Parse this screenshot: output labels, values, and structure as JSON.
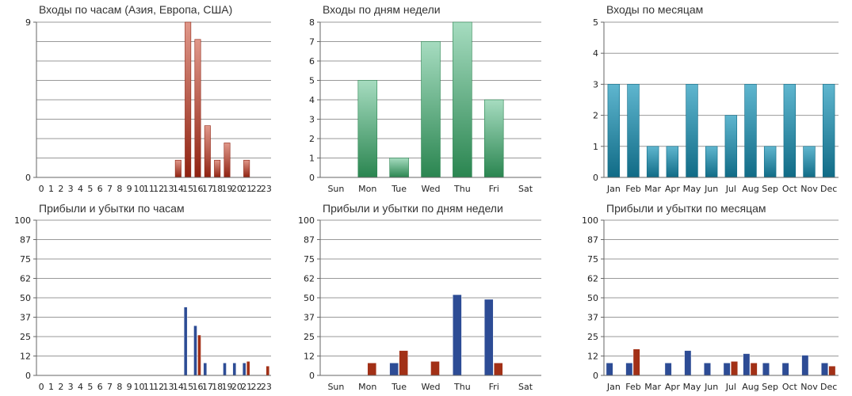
{
  "colors": {
    "hours_entries_top": "#e0988a",
    "hours_entries_bottom": "#8f2211",
    "weekday_entries_top": "#a6dcc0",
    "weekday_entries_bottom": "#2a8550",
    "month_entries_top": "#5fb6cf",
    "month_entries_bottom": "#106b86",
    "profit_blue": "#2d4c95",
    "loss_red": "#a23016",
    "grid": "#999999",
    "axis": "#666666"
  },
  "charts": {
    "hours_entries": {
      "title": "Входы по часам (Азия, Европа, США)",
      "chart_data": {
        "type": "bar",
        "title": "Входы по часам (Азия, Европа, США)",
        "categories": [
          "0",
          "1",
          "2",
          "3",
          "4",
          "5",
          "6",
          "7",
          "8",
          "9",
          "10",
          "11",
          "12",
          "13",
          "14",
          "15",
          "16",
          "17",
          "18",
          "19",
          "20",
          "21",
          "22",
          "23"
        ],
        "tick_labels": [
          "0",
          "1",
          "2",
          "3",
          "4",
          "5",
          "6",
          "7",
          "8",
          "9",
          "10",
          "11",
          "12",
          "13",
          "14",
          "15",
          "16",
          "17",
          "18",
          "19",
          "20",
          "21",
          "22",
          "23"
        ],
        "values": [
          0,
          0,
          0,
          0,
          0,
          0,
          0,
          0,
          0,
          0,
          0,
          0,
          0,
          0,
          1,
          9,
          8,
          3,
          1,
          2,
          0,
          1,
          0,
          0
        ],
        "ylim": [
          0,
          9
        ],
        "ytick_labels": [
          "0",
          "9"
        ],
        "grid": true,
        "gridline_count": 8,
        "gradient": "red"
      }
    },
    "weekday_entries": {
      "title": "Входы по дням недели",
      "chart_data": {
        "type": "bar",
        "title": "Входы по дням недели",
        "categories": [
          "Sun",
          "Mon",
          "Tue",
          "Wed",
          "Thu",
          "Fri",
          "Sat"
        ],
        "values": [
          0,
          5,
          1,
          7,
          8,
          4,
          0
        ],
        "ylim": [
          0,
          8
        ],
        "ytick_labels": [
          "0",
          "1",
          "2",
          "3",
          "4",
          "5",
          "6",
          "7",
          "8"
        ],
        "grid": true,
        "gradient": "green"
      }
    },
    "month_entries": {
      "title": "Входы по месяцам",
      "chart_data": {
        "type": "bar",
        "title": "Входы по месяцам",
        "categories": [
          "Jan",
          "Feb",
          "Mar",
          "Apr",
          "May",
          "Jun",
          "Jul",
          "Aug",
          "Sep",
          "Oct",
          "Nov",
          "Dec"
        ],
        "values": [
          3,
          3,
          1,
          1,
          3,
          1,
          2,
          3,
          1,
          3,
          1,
          3
        ],
        "ylim": [
          0,
          5
        ],
        "ytick_labels": [
          "0",
          "1",
          "2",
          "3",
          "4",
          "5"
        ],
        "grid": true,
        "gradient": "teal"
      }
    },
    "hours_pnl": {
      "title": "Прибыли и убытки по часам",
      "chart_data": {
        "type": "bar",
        "title": "Прибыли и убытки по часам",
        "categories": [
          "0",
          "1",
          "2",
          "3",
          "4",
          "5",
          "6",
          "7",
          "8",
          "9",
          "10",
          "11",
          "12",
          "13",
          "14",
          "15",
          "16",
          "17",
          "18",
          "19",
          "20",
          "21",
          "22",
          "23"
        ],
        "tick_labels": [
          "0",
          "1",
          "2",
          "3",
          "4",
          "5",
          "6",
          "7",
          "8",
          "9",
          "10",
          "11",
          "12",
          "13",
          "14",
          "15",
          "16",
          "17",
          "18",
          "19",
          "20",
          "21",
          "22",
          "23"
        ],
        "series": [
          {
            "values": [
              0,
              0,
              0,
              0,
              0,
              0,
              0,
              0,
              0,
              0,
              0,
              0,
              0,
              0,
              0,
              44,
              32,
              8,
              0,
              8,
              8,
              8,
              0,
              0
            ],
            "color": "blue"
          },
          {
            "values": [
              0,
              0,
              0,
              0,
              0,
              0,
              0,
              0,
              0,
              0,
              0,
              0,
              0,
              0,
              0,
              0,
              26,
              0,
              0,
              0,
              0,
              9,
              0,
              6
            ],
            "color": "red"
          }
        ],
        "ylim": [
          0,
          100
        ],
        "ytick_labels": [
          "0",
          "12",
          "25",
          "37",
          "50",
          "62",
          "75",
          "87",
          "100"
        ],
        "grid": true
      }
    },
    "weekday_pnl": {
      "title": "Прибыли и убытки по дням недели",
      "chart_data": {
        "type": "bar",
        "title": "Прибыли и убытки по дням недели",
        "categories": [
          "Sun",
          "Mon",
          "Tue",
          "Wed",
          "Thu",
          "Fri",
          "Sat"
        ],
        "series": [
          {
            "values": [
              0,
              0,
              8,
              0,
              52,
              49,
              0
            ],
            "color": "blue"
          },
          {
            "values": [
              0,
              8,
              16,
              9,
              0,
              8,
              0
            ],
            "color": "red"
          }
        ],
        "ylim": [
          0,
          100
        ],
        "ytick_labels": [
          "0",
          "12",
          "25",
          "37",
          "50",
          "62",
          "75",
          "87",
          "100"
        ],
        "grid": true
      }
    },
    "month_pnl": {
      "title": "Прибыли и убытки по месяцам",
      "chart_data": {
        "type": "bar",
        "title": "Прибыли и убытки по месяцам",
        "categories": [
          "Jan",
          "Feb",
          "Mar",
          "Apr",
          "May",
          "Jun",
          "Jul",
          "Aug",
          "Sep",
          "Oct",
          "Nov",
          "Dec"
        ],
        "series": [
          {
            "values": [
              8,
              8,
              0,
              8,
              16,
              8,
              8,
              14,
              8,
              8,
              13,
              8
            ],
            "color": "blue"
          },
          {
            "values": [
              0,
              17,
              0,
              0,
              0,
              0,
              9,
              8,
              0,
              0,
              0,
              6
            ],
            "color": "red"
          }
        ],
        "ylim": [
          0,
          100
        ],
        "ytick_labels": [
          "0",
          "12",
          "25",
          "37",
          "50",
          "62",
          "75",
          "87",
          "100"
        ],
        "grid": true
      }
    }
  }
}
